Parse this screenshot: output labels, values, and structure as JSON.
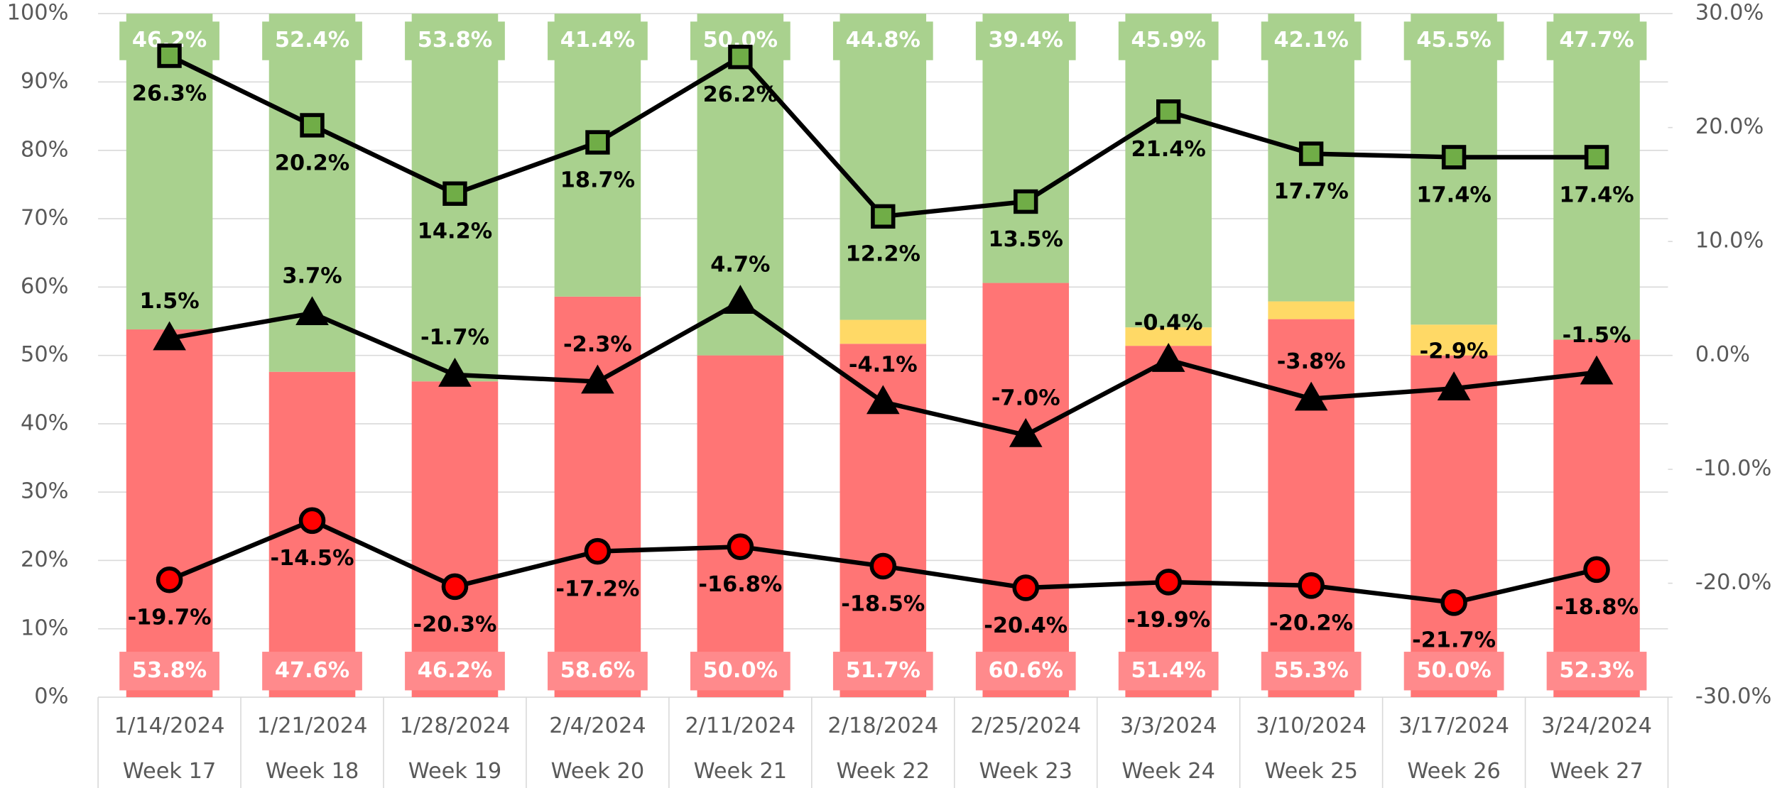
{
  "chart_data": {
    "type": "bar-line",
    "categories": [
      "1/14/2024",
      "1/21/2024",
      "1/28/2024",
      "2/4/2024",
      "2/11/2024",
      "2/18/2024",
      "2/25/2024",
      "3/3/2024",
      "3/10/2024",
      "3/17/2024",
      "3/24/2024"
    ],
    "weeks": [
      "Week 17",
      "Week 18",
      "Week 19",
      "Week 20",
      "Week 21",
      "Week 22",
      "Week 23",
      "Week 24",
      "Week 25",
      "Week 26",
      "Week 27"
    ],
    "ylim": [
      0,
      100
    ],
    "yticks": [
      {
        "value": 0,
        "label": "0%"
      },
      {
        "value": 10,
        "label": "10%"
      },
      {
        "value": 20,
        "label": "20%"
      },
      {
        "value": 30,
        "label": "30%"
      },
      {
        "value": 40,
        "label": "40%"
      },
      {
        "value": 50,
        "label": "50%"
      },
      {
        "value": 60,
        "label": "60%"
      },
      {
        "value": 70,
        "label": "70%"
      },
      {
        "value": 80,
        "label": "80%"
      },
      {
        "value": 90,
        "label": "90%"
      },
      {
        "value": 100,
        "label": "100%"
      }
    ],
    "y2lim": [
      -30,
      30
    ],
    "y2ticks": [
      {
        "value": -30,
        "label": "-30.0%"
      },
      {
        "value": -20,
        "label": "-20.0%"
      },
      {
        "value": -10,
        "label": "-10.0%"
      },
      {
        "value": 0,
        "label": "0.0%"
      },
      {
        "value": 10,
        "label": "10.0%"
      },
      {
        "value": 20,
        "label": "20.0%"
      },
      {
        "value": 30,
        "label": "30.0%"
      }
    ],
    "grid": true,
    "bars": [
      {
        "color": "#ff7575",
        "label_color": "#ff8a8c",
        "label_pos": "bottom",
        "values": [
          53.8,
          47.6,
          46.2,
          58.6,
          50.0,
          51.7,
          60.6,
          51.4,
          55.3,
          50.0,
          52.3
        ],
        "value_labels": [
          "53.8%",
          "47.6%",
          "46.2%",
          "58.6%",
          "50.0%",
          "51.7%",
          "60.6%",
          "51.4%",
          "55.3%",
          "50.0%",
          "52.3%"
        ]
      },
      {
        "color": "#ffd966",
        "values": [
          0,
          0,
          0,
          0,
          0,
          3.5,
          0,
          2.7,
          2.6,
          4.5,
          0
        ]
      },
      {
        "color": "#a9d18e",
        "label_color": "#a9d18e",
        "label_pos": "top",
        "values": [
          46.2,
          52.4,
          53.8,
          41.4,
          50.0,
          44.8,
          39.4,
          45.9,
          42.1,
          45.5,
          47.7
        ],
        "value_labels": [
          "46.2%",
          "52.4%",
          "53.8%",
          "41.4%",
          "50.0%",
          "44.8%",
          "39.4%",
          "45.9%",
          "42.1%",
          "45.5%",
          "47.7%"
        ]
      }
    ],
    "series": [
      {
        "axis": "y2",
        "marker": "square",
        "color": "#70ad47",
        "values": [
          26.3,
          20.2,
          14.2,
          18.7,
          26.2,
          12.2,
          13.5,
          21.4,
          17.7,
          17.4,
          17.4
        ],
        "value_labels": [
          "26.3%",
          "20.2%",
          "14.2%",
          "18.7%",
          "26.2%",
          "12.2%",
          "13.5%",
          "21.4%",
          "17.7%",
          "17.4%",
          "17.4%"
        ]
      },
      {
        "axis": "y2",
        "marker": "triangle",
        "color": "#000000",
        "values": [
          1.5,
          3.7,
          -1.7,
          -2.3,
          4.7,
          -4.1,
          -7.0,
          -0.4,
          -3.8,
          -2.9,
          -1.5
        ],
        "value_labels": [
          "1.5%",
          "3.7%",
          "-1.7%",
          "-2.3%",
          "4.7%",
          "-4.1%",
          "-7.0%",
          "-0.4%",
          "-3.8%",
          "-2.9%",
          "-1.5%"
        ]
      },
      {
        "axis": "y2",
        "marker": "circle",
        "color": "#ff0000",
        "values": [
          -19.7,
          -14.5,
          -20.3,
          -17.2,
          -16.8,
          -18.5,
          -20.4,
          -19.9,
          -20.2,
          -21.7,
          -18.8
        ],
        "value_labels": [
          "-19.7%",
          "-14.5%",
          "-20.3%",
          "-17.2%",
          "-16.8%",
          "-18.5%",
          "-20.4%",
          "-19.9%",
          "-20.2%",
          "-21.7%",
          "-18.8%"
        ]
      }
    ]
  }
}
